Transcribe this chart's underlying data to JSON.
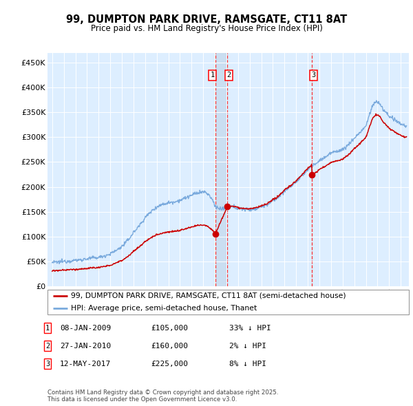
{
  "title": "99, DUMPTON PARK DRIVE, RAMSGATE, CT11 8AT",
  "subtitle": "Price paid vs. HM Land Registry's House Price Index (HPI)",
  "plot_bg_color": "#ddeeff",
  "ylabel": "",
  "ylim": [
    0,
    470000
  ],
  "yticks": [
    0,
    50000,
    100000,
    150000,
    200000,
    250000,
    300000,
    350000,
    400000,
    450000
  ],
  "ytick_labels": [
    "£0",
    "£50K",
    "£100K",
    "£150K",
    "£200K",
    "£250K",
    "£300K",
    "£350K",
    "£400K",
    "£450K"
  ],
  "transactions": [
    {
      "num": 1,
      "date": "08-JAN-2009",
      "price": 105000,
      "pct": "33% ↓ HPI",
      "x_year": 2009.03
    },
    {
      "num": 2,
      "date": "27-JAN-2010",
      "price": 160000,
      "pct": "2% ↓ HPI",
      "x_year": 2010.07
    },
    {
      "num": 3,
      "date": "12-MAY-2017",
      "price": 225000,
      "pct": "8% ↓ HPI",
      "x_year": 2017.36
    }
  ],
  "legend_property_label": "99, DUMPTON PARK DRIVE, RAMSGATE, CT11 8AT (semi-detached house)",
  "legend_hpi_label": "HPI: Average price, semi-detached house, Thanet",
  "footer": "Contains HM Land Registry data © Crown copyright and database right 2025.\nThis data is licensed under the Open Government Licence v3.0.",
  "property_color": "#cc0000",
  "hpi_color": "#7aaadd",
  "shade_color": "#c8ddf0",
  "xlim_start": 1994.6,
  "xlim_end": 2025.7,
  "xticks": [
    1995,
    1996,
    1997,
    1998,
    1999,
    2000,
    2001,
    2002,
    2003,
    2004,
    2005,
    2006,
    2007,
    2008,
    2009,
    2010,
    2011,
    2012,
    2013,
    2014,
    2015,
    2016,
    2017,
    2018,
    2019,
    2020,
    2021,
    2022,
    2023,
    2024,
    2025
  ]
}
